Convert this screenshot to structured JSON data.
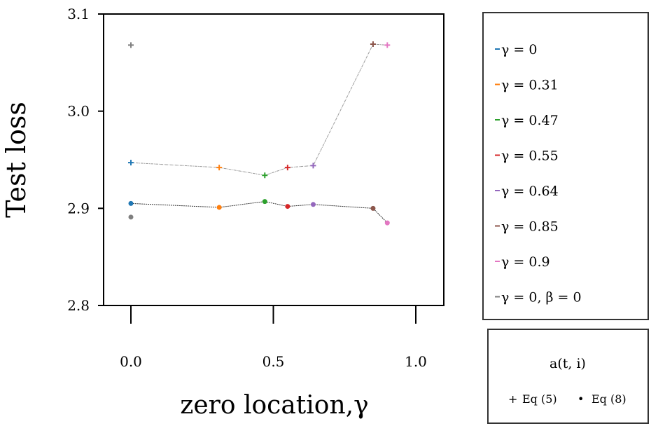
{
  "chart_data": {
    "type": "scatter",
    "xlabel": "zero location,γ",
    "ylabel": "Test loss",
    "xlim": [
      -0.1,
      1.1
    ],
    "ylim": [
      2.8,
      3.1
    ],
    "xticks": [
      "0.0",
      "0.5",
      "1.0"
    ],
    "xtick_values": [
      0,
      0.5,
      1
    ],
    "yticks": [
      "2.8",
      "2.9",
      "3.0",
      "3.1"
    ],
    "ytick_values": [
      2.8,
      2.9,
      3.0,
      3.1
    ],
    "series": [
      {
        "name": "γ = 0",
        "color": "#1f77b4",
        "x": 0,
        "eq5": 2.947,
        "eq8": 2.905
      },
      {
        "name": "γ = 0.31",
        "color": "#ff7f0e",
        "x": 0.31,
        "eq5": 2.942,
        "eq8": 2.901
      },
      {
        "name": "γ = 0.47",
        "color": "#2ca02c",
        "x": 0.47,
        "eq5": 2.934,
        "eq8": 2.907
      },
      {
        "name": "γ = 0.55",
        "color": "#d62728",
        "x": 0.55,
        "eq5": 2.942,
        "eq8": 2.902
      },
      {
        "name": "γ = 0.64",
        "color": "#9467bd",
        "x": 0.64,
        "eq5": 2.944,
        "eq8": 2.904
      },
      {
        "name": "γ = 0.85",
        "color": "#8c564b",
        "x": 0.85,
        "eq5": 3.069,
        "eq8": 2.9
      },
      {
        "name": "γ = 0.9",
        "color": "#e377c2",
        "x": 0.9,
        "eq5": 3.068,
        "eq8": 2.885
      },
      {
        "name": "γ = 0, β = 0",
        "color": "#7f7f7f",
        "x": 0,
        "eq5": 3.068,
        "eq8": 2.891
      }
    ],
    "legend_placement": "right",
    "marker_legend": {
      "title": "a(t, i)",
      "items": [
        {
          "symbol": "+",
          "label": "Eq (5)"
        },
        {
          "symbol": "•",
          "label": "Eq (8)"
        }
      ]
    }
  }
}
